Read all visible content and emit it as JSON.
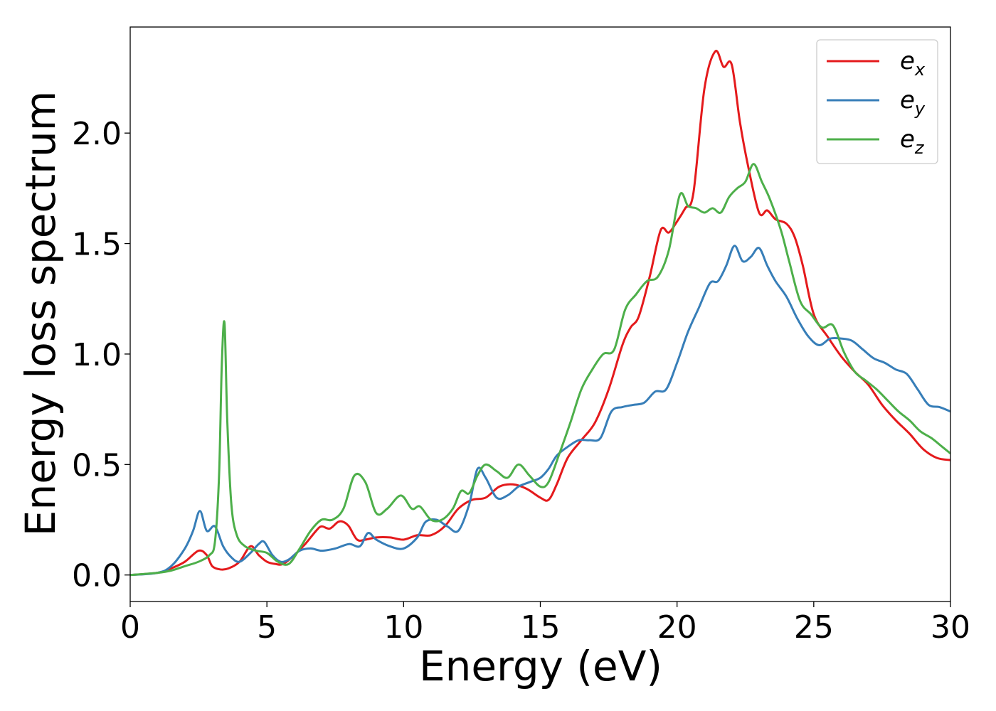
{
  "chart_data": {
    "type": "line",
    "xlabel": "Energy (eV)",
    "ylabel": "Energy loss spectrum",
    "xlim": [
      0,
      30
    ],
    "ylim": [
      -0.12,
      2.48
    ],
    "x_ticks": [
      0,
      5,
      10,
      15,
      20,
      25,
      30
    ],
    "x_tick_labels": [
      "0",
      "5",
      "10",
      "15",
      "20",
      "25",
      "30"
    ],
    "y_ticks": [
      0.0,
      0.5,
      1.0,
      1.5,
      2.0
    ],
    "y_tick_labels": [
      "0.0",
      "0.5",
      "1.0",
      "1.5",
      "2.0"
    ],
    "grid": false,
    "legend_position": "top-right",
    "series": [
      {
        "name": "e",
        "subscript": "x",
        "color": "#e41a1c",
        "x": [
          0,
          1,
          1.5,
          2,
          2.5,
          2.8,
          3.0,
          3.3,
          3.6,
          4.0,
          4.4,
          4.7,
          5.0,
          5.3,
          5.6,
          6.0,
          6.4,
          6.8,
          7.0,
          7.3,
          7.6,
          7.8,
          8.0,
          8.3,
          8.6,
          9.0,
          9.5,
          10.0,
          10.5,
          11.0,
          11.5,
          12.0,
          12.5,
          13.0,
          13.5,
          14.0,
          14.5,
          15.0,
          15.3,
          15.6,
          16.0,
          16.5,
          17.0,
          17.5,
          18.0,
          18.3,
          18.6,
          19.0,
          19.4,
          19.7,
          20.0,
          20.3,
          20.6,
          21.0,
          21.4,
          21.7,
          22.0,
          22.3,
          22.6,
          23.0,
          23.3,
          23.6,
          24.0,
          24.3,
          24.6,
          25.0,
          25.5,
          26.0,
          26.5,
          27.0,
          27.5,
          28.0,
          28.5,
          29.0,
          29.5,
          30.0
        ],
        "y": [
          0.0,
          0.01,
          0.03,
          0.06,
          0.11,
          0.09,
          0.04,
          0.025,
          0.03,
          0.06,
          0.13,
          0.09,
          0.06,
          0.05,
          0.05,
          0.09,
          0.14,
          0.2,
          0.22,
          0.21,
          0.24,
          0.24,
          0.22,
          0.16,
          0.16,
          0.17,
          0.17,
          0.16,
          0.18,
          0.18,
          0.22,
          0.3,
          0.34,
          0.35,
          0.4,
          0.41,
          0.39,
          0.35,
          0.34,
          0.41,
          0.53,
          0.61,
          0.69,
          0.84,
          1.04,
          1.12,
          1.17,
          1.35,
          1.56,
          1.55,
          1.6,
          1.66,
          1.73,
          2.2,
          2.37,
          2.3,
          2.31,
          2.05,
          1.85,
          1.64,
          1.65,
          1.61,
          1.59,
          1.53,
          1.4,
          1.18,
          1.08,
          0.99,
          0.92,
          0.86,
          0.77,
          0.7,
          0.64,
          0.57,
          0.53,
          0.52
        ]
      },
      {
        "name": "e",
        "subscript": "y",
        "color": "#377eb8",
        "x": [
          0,
          1,
          1.5,
          2,
          2.3,
          2.55,
          2.8,
          3.1,
          3.4,
          3.7,
          4.0,
          4.4,
          4.7,
          4.9,
          5.2,
          5.5,
          5.8,
          6.2,
          6.6,
          7.0,
          7.5,
          8.0,
          8.4,
          8.7,
          9.0,
          9.5,
          10.0,
          10.5,
          10.8,
          11.2,
          11.6,
          12.0,
          12.4,
          12.7,
          13.0,
          13.4,
          13.8,
          14.2,
          14.6,
          15.0,
          15.3,
          15.6,
          16.0,
          16.4,
          16.8,
          17.2,
          17.6,
          18.0,
          18.4,
          18.8,
          19.2,
          19.6,
          20.0,
          20.4,
          20.8,
          21.2,
          21.5,
          21.8,
          22.1,
          22.4,
          22.7,
          23.0,
          23.3,
          23.6,
          24.0,
          24.4,
          24.8,
          25.2,
          25.6,
          26.0,
          26.4,
          26.8,
          27.2,
          27.6,
          28.0,
          28.4,
          28.8,
          29.2,
          29.6,
          30.0
        ],
        "y": [
          0.0,
          0.01,
          0.04,
          0.12,
          0.2,
          0.29,
          0.2,
          0.22,
          0.13,
          0.08,
          0.06,
          0.1,
          0.14,
          0.15,
          0.09,
          0.06,
          0.07,
          0.11,
          0.12,
          0.11,
          0.12,
          0.14,
          0.13,
          0.19,
          0.16,
          0.13,
          0.12,
          0.17,
          0.24,
          0.25,
          0.22,
          0.2,
          0.32,
          0.48,
          0.44,
          0.35,
          0.36,
          0.4,
          0.42,
          0.44,
          0.48,
          0.54,
          0.58,
          0.61,
          0.61,
          0.62,
          0.74,
          0.76,
          0.77,
          0.78,
          0.83,
          0.84,
          0.96,
          1.1,
          1.21,
          1.32,
          1.33,
          1.4,
          1.49,
          1.42,
          1.44,
          1.48,
          1.4,
          1.33,
          1.26,
          1.16,
          1.08,
          1.04,
          1.07,
          1.07,
          1.06,
          1.02,
          0.98,
          0.96,
          0.93,
          0.91,
          0.84,
          0.77,
          0.76,
          0.74
        ]
      },
      {
        "name": "e",
        "subscript": "z",
        "color": "#4daf4a",
        "x": [
          0,
          1,
          1.5,
          2,
          2.5,
          2.9,
          3.1,
          3.25,
          3.35,
          3.45,
          3.55,
          3.7,
          3.9,
          4.2,
          4.6,
          5.0,
          5.4,
          5.8,
          6.2,
          6.6,
          7.0,
          7.4,
          7.8,
          8.2,
          8.6,
          9.0,
          9.4,
          9.9,
          10.3,
          10.6,
          11.0,
          11.4,
          11.8,
          12.1,
          12.4,
          12.7,
          13.0,
          13.4,
          13.8,
          14.2,
          14.6,
          15.0,
          15.3,
          15.7,
          16.1,
          16.5,
          16.9,
          17.3,
          17.7,
          18.1,
          18.5,
          18.9,
          19.3,
          19.7,
          20.1,
          20.4,
          20.7,
          21.0,
          21.3,
          21.6,
          21.9,
          22.2,
          22.5,
          22.8,
          23.1,
          23.4,
          23.8,
          24.1,
          24.5,
          24.9,
          25.3,
          25.7,
          26.1,
          26.5,
          26.9,
          27.3,
          27.7,
          28.1,
          28.5,
          28.9,
          29.3,
          29.7,
          30.0
        ],
        "y": [
          0.0,
          0.01,
          0.02,
          0.04,
          0.06,
          0.09,
          0.15,
          0.45,
          0.95,
          1.14,
          0.7,
          0.32,
          0.18,
          0.13,
          0.11,
          0.1,
          0.06,
          0.05,
          0.12,
          0.2,
          0.25,
          0.25,
          0.3,
          0.45,
          0.42,
          0.28,
          0.3,
          0.36,
          0.3,
          0.31,
          0.25,
          0.25,
          0.3,
          0.38,
          0.37,
          0.45,
          0.5,
          0.47,
          0.44,
          0.5,
          0.45,
          0.4,
          0.42,
          0.55,
          0.69,
          0.84,
          0.93,
          1.0,
          1.02,
          1.2,
          1.27,
          1.33,
          1.35,
          1.47,
          1.72,
          1.67,
          1.66,
          1.64,
          1.66,
          1.64,
          1.71,
          1.75,
          1.78,
          1.86,
          1.78,
          1.7,
          1.56,
          1.42,
          1.24,
          1.18,
          1.12,
          1.13,
          1.01,
          0.92,
          0.88,
          0.84,
          0.79,
          0.74,
          0.7,
          0.65,
          0.62,
          0.58,
          0.55
        ]
      }
    ]
  }
}
